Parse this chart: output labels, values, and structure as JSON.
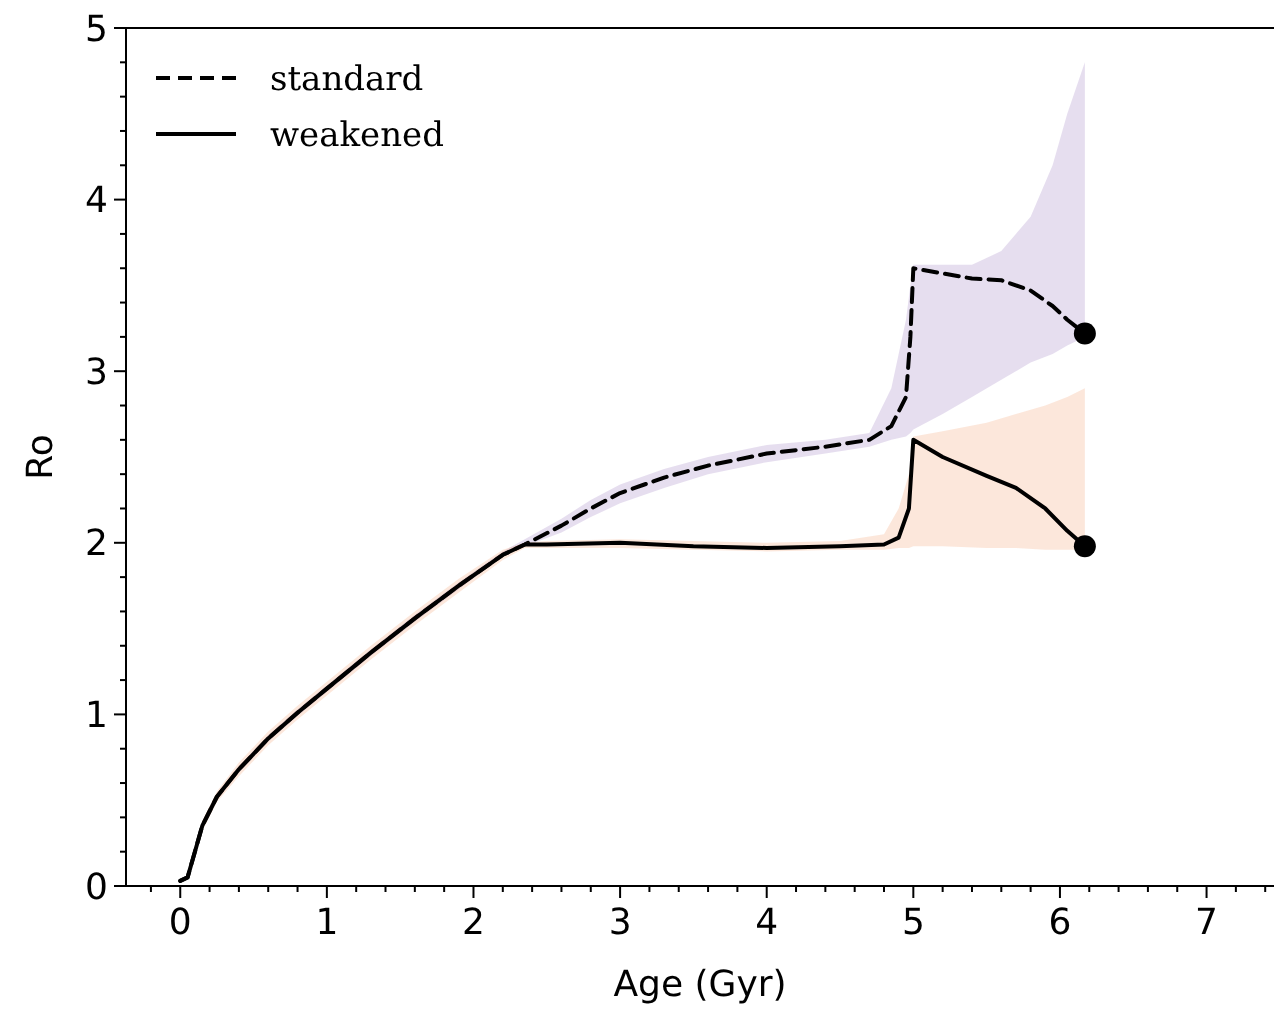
{
  "chart_data": {
    "type": "line",
    "xlabel": "Age (Gyr)",
    "ylabel": "Ro",
    "xlim": [
      -0.37,
      7.46
    ],
    "ylim": [
      0,
      5
    ],
    "xticks": [
      0,
      {
        "value": 0.2,
        "label": null
      },
      {
        "value": 0.4,
        "label": null
      },
      {
        "value": 0.6,
        "label": null
      },
      {
        "value": 0.8,
        "label": null
      },
      1,
      {
        "value": 1.2,
        "label": null
      },
      {
        "value": 1.4,
        "label": null
      },
      {
        "value": 1.6,
        "label": null
      },
      {
        "value": 1.8,
        "label": null
      },
      2,
      {
        "value": 2.2,
        "label": null
      },
      {
        "value": 2.4,
        "label": null
      },
      {
        "value": 2.6,
        "label": null
      },
      {
        "value": 2.8,
        "label": null
      },
      3,
      {
        "value": 3.2,
        "label": null
      },
      {
        "value": 3.4,
        "label": null
      },
      {
        "value": 3.6,
        "label": null
      },
      {
        "value": 3.8,
        "label": null
      },
      4,
      {
        "value": 4.2,
        "label": null
      },
      {
        "value": 4.4,
        "label": null
      },
      {
        "value": 4.6,
        "label": null
      },
      {
        "value": 4.8,
        "label": null
      },
      5,
      {
        "value": 5.2,
        "label": null
      },
      {
        "value": 5.4,
        "label": null
      },
      {
        "value": 5.6,
        "label": null
      },
      {
        "value": 5.8,
        "label": null
      },
      6,
      {
        "value": 6.2,
        "label": null
      },
      {
        "value": 6.4,
        "label": null
      },
      {
        "value": 6.6,
        "label": null
      },
      {
        "value": 6.8,
        "label": null
      },
      7,
      {
        "value": 7.2,
        "label": null
      },
      {
        "value": 7.4,
        "label": null
      },
      {
        "value": -0.2,
        "label": null
      }
    ],
    "yticks": [
      0,
      {
        "value": 0.2,
        "label": null
      },
      {
        "value": 0.4,
        "label": null
      },
      {
        "value": 0.6,
        "label": null
      },
      {
        "value": 0.8,
        "label": null
      },
      1,
      {
        "value": 1.2,
        "label": null
      },
      {
        "value": 1.4,
        "label": null
      },
      {
        "value": 1.6,
        "label": null
      },
      {
        "value": 1.8,
        "label": null
      },
      2,
      {
        "value": 2.2,
        "label": null
      },
      {
        "value": 2.4,
        "label": null
      },
      {
        "value": 2.6,
        "label": null
      },
      {
        "value": 2.8,
        "label": null
      },
      3,
      {
        "value": 3.2,
        "label": null
      },
      {
        "value": 3.4,
        "label": null
      },
      {
        "value": 3.6,
        "label": null
      },
      {
        "value": 3.8,
        "label": null
      },
      4,
      {
        "value": 4.2,
        "label": null
      },
      {
        "value": 4.4,
        "label": null
      },
      {
        "value": 4.6,
        "label": null
      },
      {
        "value": 4.8,
        "label": null
      },
      5
    ],
    "legend": "top left",
    "grid": false,
    "series": [
      {
        "name": "standard",
        "color": "#000000",
        "line_style": "dashed",
        "x": [
          0,
          0.05,
          0.1,
          0.15,
          0.25,
          0.4,
          0.6,
          0.8,
          1.0,
          1.3,
          1.6,
          1.9,
          2.2,
          2.35,
          2.6,
          2.8,
          3.0,
          3.3,
          3.6,
          4.0,
          4.4,
          4.7,
          4.85,
          4.95,
          4.98,
          5.0,
          5.2,
          5.4,
          5.6,
          5.8,
          5.95,
          6.05,
          6.17
        ],
        "values": [
          0.03,
          0.05,
          0.2,
          0.35,
          0.52,
          0.68,
          0.86,
          1.01,
          1.15,
          1.36,
          1.56,
          1.75,
          1.93,
          1.99,
          2.1,
          2.2,
          2.29,
          2.38,
          2.45,
          2.52,
          2.56,
          2.6,
          2.68,
          2.85,
          3.2,
          3.6,
          3.57,
          3.54,
          3.53,
          3.47,
          3.38,
          3.3,
          3.22
        ],
        "lower": [
          0.03,
          0.05,
          0.19,
          0.33,
          0.5,
          0.66,
          0.84,
          0.99,
          1.13,
          1.34,
          1.54,
          1.73,
          1.92,
          1.98,
          2.06,
          2.15,
          2.23,
          2.32,
          2.4,
          2.47,
          2.52,
          2.56,
          2.6,
          2.62,
          2.64,
          2.66,
          2.75,
          2.85,
          2.95,
          3.05,
          3.1,
          3.15,
          3.2
        ],
        "upper": [
          0.03,
          0.05,
          0.21,
          0.37,
          0.54,
          0.7,
          0.88,
          1.03,
          1.17,
          1.38,
          1.58,
          1.77,
          1.95,
          2.02,
          2.14,
          2.25,
          2.34,
          2.43,
          2.5,
          2.57,
          2.6,
          2.64,
          2.9,
          3.3,
          3.5,
          3.62,
          3.62,
          3.62,
          3.7,
          3.9,
          4.2,
          4.5,
          4.8
        ]
      },
      {
        "name": "weakened",
        "color": "#000000",
        "line_style": "solid",
        "x": [
          0,
          0.05,
          0.1,
          0.15,
          0.25,
          0.4,
          0.6,
          0.8,
          1.0,
          1.3,
          1.6,
          1.9,
          2.2,
          2.35,
          2.5,
          3.0,
          3.5,
          4.0,
          4.5,
          4.8,
          4.9,
          4.97,
          5.0,
          5.2,
          5.5,
          5.7,
          5.9,
          6.05,
          6.17
        ],
        "values": [
          0.03,
          0.05,
          0.2,
          0.35,
          0.52,
          0.68,
          0.86,
          1.01,
          1.15,
          1.36,
          1.56,
          1.75,
          1.93,
          1.99,
          1.99,
          2.0,
          1.98,
          1.97,
          1.98,
          1.99,
          2.03,
          2.2,
          2.6,
          2.5,
          2.39,
          2.32,
          2.2,
          2.07,
          1.98
        ],
        "lower": [
          0.03,
          0.05,
          0.18,
          0.32,
          0.49,
          0.64,
          0.82,
          0.97,
          1.11,
          1.32,
          1.52,
          1.71,
          1.9,
          1.97,
          1.97,
          1.97,
          1.96,
          1.95,
          1.96,
          1.96,
          1.97,
          1.97,
          1.98,
          1.98,
          1.97,
          1.97,
          1.96,
          1.96,
          1.96
        ],
        "upper": [
          0.03,
          0.05,
          0.22,
          0.38,
          0.55,
          0.72,
          0.9,
          1.05,
          1.19,
          1.4,
          1.6,
          1.79,
          1.96,
          2.0,
          2.01,
          2.02,
          2.01,
          2.0,
          2.01,
          2.05,
          2.2,
          2.4,
          2.62,
          2.65,
          2.7,
          2.75,
          2.8,
          2.85,
          2.9
        ]
      },
      {
        "type": "scatter",
        "color": "#000000",
        "marker": "circle",
        "x": [
          6.17,
          6.17
        ],
        "values": [
          3.22,
          1.98
        ]
      }
    ]
  }
}
